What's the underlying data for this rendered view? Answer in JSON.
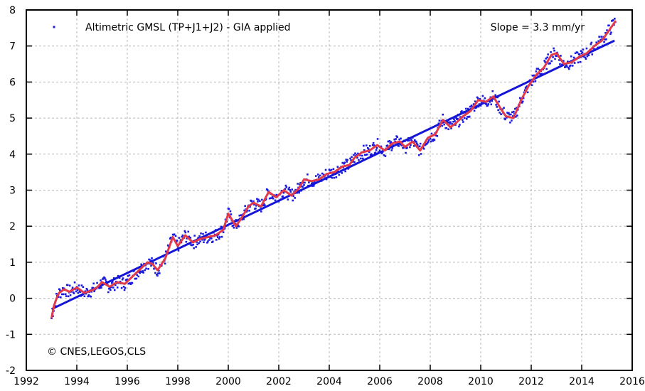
{
  "chart_data": {
    "type": "scatter",
    "title": "",
    "xlabel": "",
    "ylabel": "",
    "xlim": [
      1992,
      2016
    ],
    "ylim": [
      -2,
      8
    ],
    "xticks": [
      1992,
      1994,
      1996,
      1998,
      2000,
      2002,
      2004,
      2006,
      2008,
      2010,
      2012,
      2014,
      2016
    ],
    "yticks": [
      -2,
      -1,
      0,
      1,
      2,
      3,
      4,
      5,
      6,
      7,
      8
    ],
    "grid": true,
    "legend_position": "top-left",
    "annotations": {
      "slope": "Slope = 3.3 mm/yr",
      "credit": "© CNES,LEGOS,CLS"
    },
    "colors": {
      "points": "#1a1adf",
      "trend": "#1515d8",
      "smooth": "#e33a4a",
      "frame": "#000000",
      "grid": "#b8b8b8"
    },
    "series": [
      {
        "name": "Altimetric GMSL (TP+J1+J2) - GIA applied",
        "kind": "scatter"
      },
      {
        "kind": "smoothed-line",
        "x": [
          1993.0,
          1993.1,
          1993.2,
          1993.3,
          1993.5,
          1993.7,
          1994.0,
          1994.3,
          1994.6,
          1994.8,
          1995.0,
          1995.3,
          1995.6,
          1995.9,
          1996.2,
          1996.5,
          1996.8,
          1997.0,
          1997.2,
          1997.5,
          1997.8,
          1998.0,
          1998.3,
          1998.6,
          1998.9,
          1999.2,
          1999.5,
          1999.8,
          2000.0,
          2000.3,
          2000.5,
          2000.8,
          2001.0,
          2001.3,
          2001.6,
          2001.9,
          2002.2,
          2002.5,
          2002.8,
          2003.0,
          2003.3,
          2003.6,
          2003.9,
          2004.2,
          2004.5,
          2004.8,
          2005.0,
          2005.3,
          2005.6,
          2005.9,
          2006.2,
          2006.5,
          2006.8,
          2007.0,
          2007.3,
          2007.6,
          2007.9,
          2008.2,
          2008.5,
          2008.8,
          2009.0,
          2009.3,
          2009.6,
          2009.9,
          2010.2,
          2010.5,
          2010.8,
          2011.0,
          2011.3,
          2011.6,
          2011.9,
          2012.2,
          2012.5,
          2012.8,
          2013.0,
          2013.3,
          2013.6,
          2013.9,
          2014.2,
          2014.5,
          2014.8,
          2015.0,
          2015.2,
          2015.35
        ],
        "y": [
          -0.55,
          -0.2,
          0.0,
          0.15,
          0.25,
          0.18,
          0.3,
          0.15,
          0.22,
          0.3,
          0.45,
          0.32,
          0.45,
          0.4,
          0.6,
          0.8,
          1.0,
          0.95,
          0.78,
          1.1,
          1.7,
          1.45,
          1.75,
          1.55,
          1.65,
          1.7,
          1.75,
          1.9,
          2.35,
          2.0,
          2.2,
          2.55,
          2.65,
          2.55,
          2.95,
          2.8,
          3.0,
          2.85,
          3.05,
          3.3,
          3.25,
          3.3,
          3.45,
          3.5,
          3.65,
          3.7,
          3.9,
          4.05,
          4.1,
          4.25,
          4.1,
          4.3,
          4.35,
          4.2,
          4.35,
          4.1,
          4.45,
          4.55,
          4.95,
          4.75,
          4.85,
          5.05,
          5.2,
          5.5,
          5.45,
          5.6,
          5.25,
          5.05,
          5.0,
          5.5,
          5.9,
          6.2,
          6.4,
          6.75,
          6.8,
          6.5,
          6.55,
          6.7,
          6.8,
          7.0,
          7.15,
          7.35,
          7.55,
          7.7
        ]
      },
      {
        "kind": "trend-line",
        "x": [
          1993.0,
          2015.3
        ],
        "y": [
          -0.3,
          7.15
        ]
      }
    ]
  }
}
